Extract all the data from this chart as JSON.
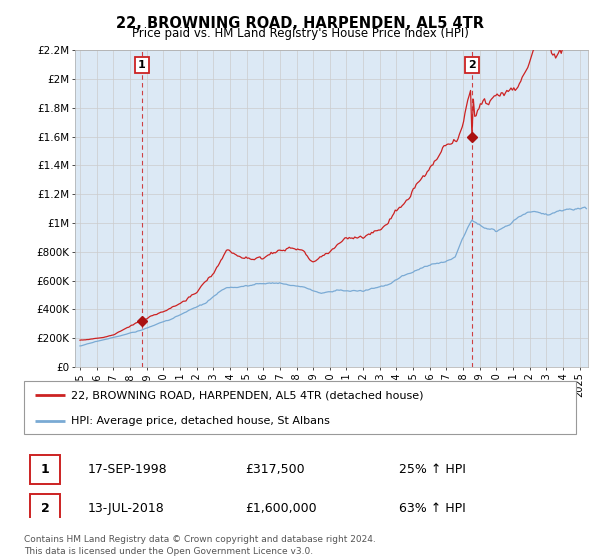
{
  "title": "22, BROWNING ROAD, HARPENDEN, AL5 4TR",
  "subtitle": "Price paid vs. HM Land Registry's House Price Index (HPI)",
  "ylabel_ticks": [
    "£0",
    "£200K",
    "£400K",
    "£600K",
    "£800K",
    "£1M",
    "£1.2M",
    "£1.4M",
    "£1.6M",
    "£1.8M",
    "£2M",
    "£2.2M"
  ],
  "ylim": [
    0,
    2200000
  ],
  "ytick_vals": [
    0,
    200000,
    400000,
    600000,
    800000,
    1000000,
    1200000,
    1400000,
    1600000,
    1800000,
    2000000,
    2200000
  ],
  "xlim_start": 1994.7,
  "xlim_end": 2025.5,
  "x_ticks": [
    1995,
    1996,
    1997,
    1998,
    1999,
    2000,
    2001,
    2002,
    2003,
    2004,
    2005,
    2006,
    2007,
    2008,
    2009,
    2010,
    2011,
    2012,
    2013,
    2014,
    2015,
    2016,
    2017,
    2018,
    2019,
    2020,
    2021,
    2022,
    2023,
    2024,
    2025
  ],
  "sale1_x": 1998.72,
  "sale1_y": 317500,
  "sale2_x": 2018.54,
  "sale2_y": 1600000,
  "line1_color": "#cc2222",
  "line2_color": "#7aaad4",
  "vline_color": "#cc2222",
  "dot_color": "#aa1111",
  "grid_color": "#cccccc",
  "plot_bg_color": "#dce9f5",
  "background_color": "#ffffff",
  "legend1_label": "22, BROWNING ROAD, HARPENDEN, AL5 4TR (detached house)",
  "legend2_label": "HPI: Average price, detached house, St Albans",
  "sale1_date": "17-SEP-1998",
  "sale1_price": "£317,500",
  "sale1_hpi": "25% ↑ HPI",
  "sale2_date": "13-JUL-2018",
  "sale2_price": "£1,600,000",
  "sale2_hpi": "63% ↑ HPI",
  "footnote": "Contains HM Land Registry data © Crown copyright and database right 2024.\nThis data is licensed under the Open Government Licence v3.0."
}
